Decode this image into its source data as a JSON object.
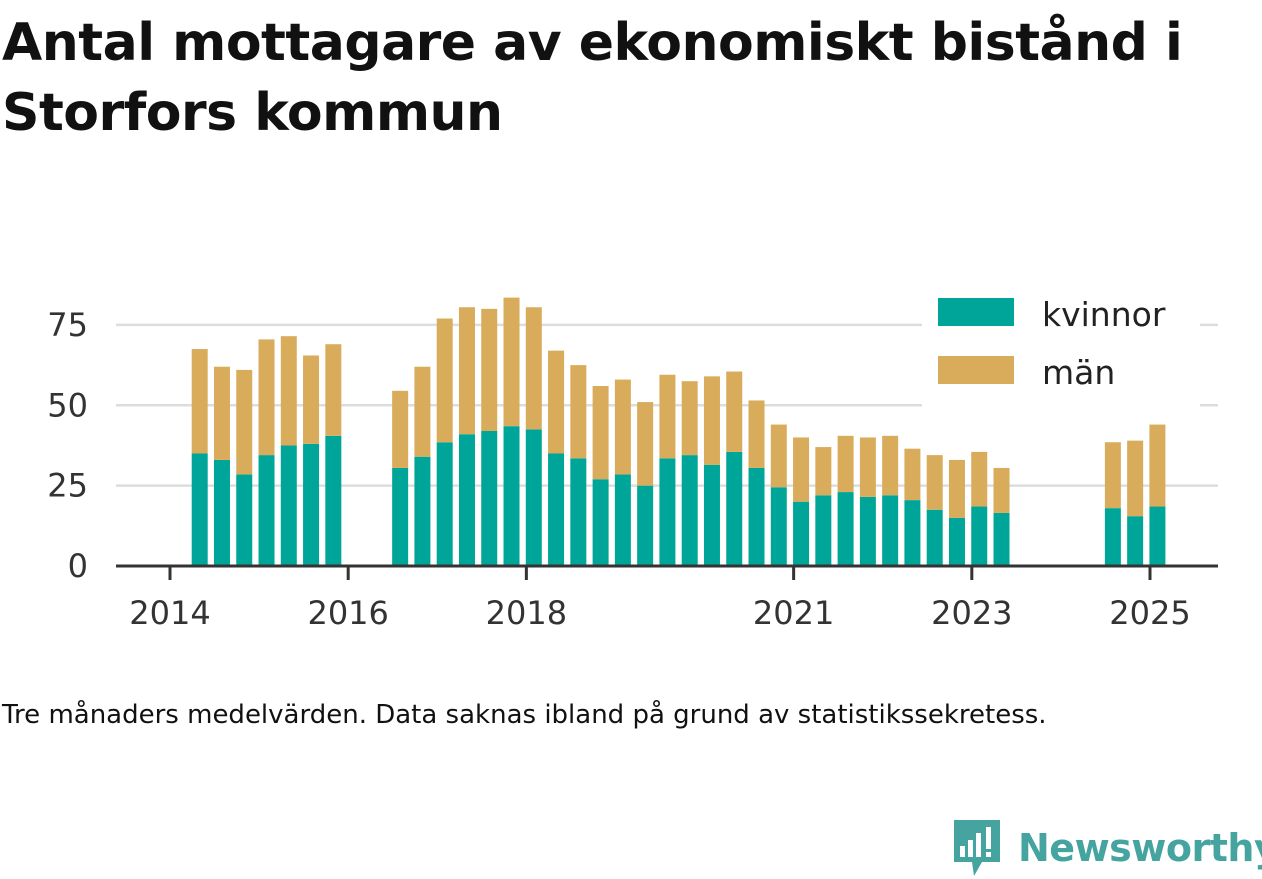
{
  "title": "Antal mottagare av ekonomiskt bistånd i Storfors kommun",
  "caption": "Tre månaders medelvärden. Data saknas ibland på grund av statistikssekretess.",
  "brand": {
    "name": "Newsworthy",
    "icon": "bar-chart-speech-bubble-icon",
    "color": "#45a3a0"
  },
  "chart_data": {
    "type": "bar",
    "stacked": true,
    "xlabel": "",
    "ylabel": "",
    "ylim": [
      0,
      84
    ],
    "yticks": [
      0,
      25,
      50,
      75
    ],
    "xticks": [
      "2014",
      "2016",
      "2018",
      "2021",
      "2023",
      "2025"
    ],
    "grid": true,
    "legend_position": "top-right",
    "colors": {
      "kvinnor": "#00a599",
      "män": "#d9ac5b"
    },
    "x": [
      "2014-04",
      "2014-07",
      "2014-10",
      "2015-01",
      "2015-04",
      "2015-07",
      "2015-10",
      "2016-07",
      "2016-10",
      "2017-01",
      "2017-04",
      "2017-07",
      "2017-10",
      "2018-01",
      "2018-04",
      "2018-07",
      "2018-10",
      "2019-01",
      "2019-04",
      "2019-07",
      "2019-10",
      "2020-01",
      "2020-04",
      "2020-07",
      "2020-10",
      "2021-01",
      "2021-04",
      "2021-07",
      "2021-10",
      "2022-01",
      "2022-04",
      "2022-07",
      "2022-10",
      "2023-01",
      "2023-04",
      "2024-07",
      "2024-10",
      "2025-01"
    ],
    "series": [
      {
        "name": "kvinnor",
        "values": [
          35,
          33,
          28.5,
          34.5,
          37.5,
          38,
          40.5,
          30.5,
          34,
          38.5,
          41,
          42,
          43.5,
          42.5,
          35,
          33.5,
          27,
          28.5,
          25,
          33.5,
          34.5,
          31.5,
          35.5,
          30.5,
          24.5,
          20,
          22,
          23,
          21.5,
          22,
          20.5,
          17.5,
          15,
          18.5,
          16.5,
          18,
          15.5,
          18.5
        ]
      },
      {
        "name": "män",
        "values": [
          32.5,
          29,
          32.5,
          36,
          34,
          27.5,
          28.5,
          24,
          28,
          38.5,
          39.5,
          38,
          40,
          38,
          32,
          29,
          29,
          29.5,
          26,
          26,
          23,
          27.5,
          25,
          21,
          19.5,
          20,
          15,
          17.5,
          18.5,
          18.5,
          16,
          17,
          18,
          17,
          14,
          20.5,
          23.5,
          25.5
        ]
      }
    ]
  }
}
